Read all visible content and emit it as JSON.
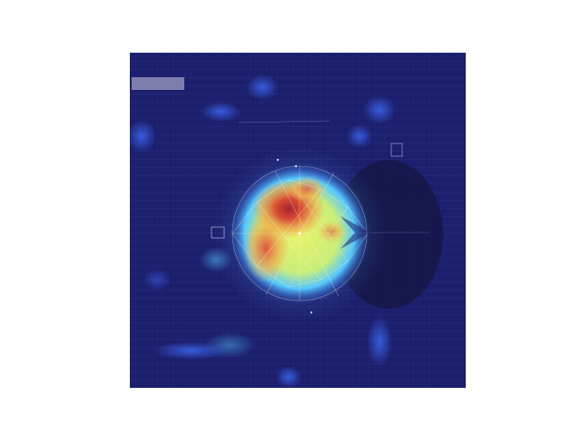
{
  "figure": {
    "kind": "attention-heatmap-overlay",
    "colormap": "jet",
    "colors": {
      "background": "#ffffff",
      "low": "#1c1f6e",
      "mid_low": "#2b3fc4",
      "mid": "#56c8ff",
      "mid_high": "#e8f36a",
      "high": "#d9382b",
      "peak": "#a0102a"
    },
    "hotspot_labels": [],
    "gridlines_visible": true
  }
}
